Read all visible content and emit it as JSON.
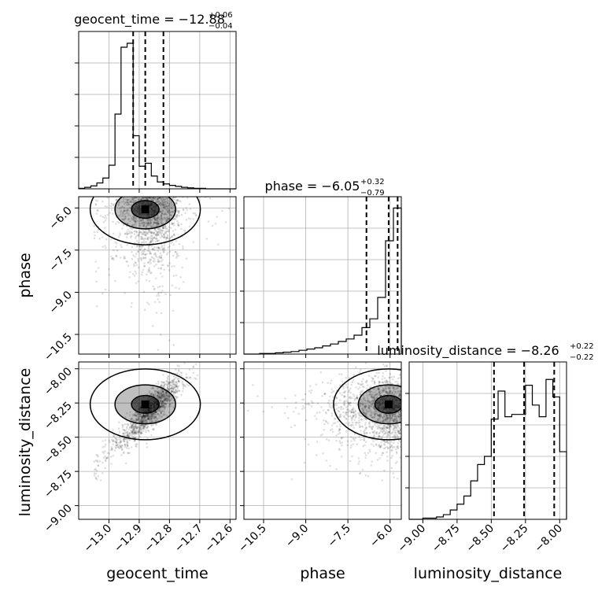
{
  "chart_data": {
    "type": "corner",
    "grid": true,
    "parameters": [
      {
        "name": "geocent_time",
        "axis_label": "geocent_time",
        "range": [
          -13.1,
          -12.58
        ],
        "ticks": [
          -13.0,
          -12.9,
          -12.8,
          -12.7,
          -12.6
        ],
        "tick_labels": [
          "−13.0",
          "−12.9",
          "−12.8",
          "−12.7",
          "−12.6"
        ],
        "median": -12.88,
        "quantiles": [
          -12.92,
          -12.88,
          -12.82
        ],
        "title": {
          "prefix": "geocent_time = −12.88",
          "upper": "+0.06",
          "lower": "−0.04"
        },
        "histogram": {
          "bin_edges": [
            -13.1,
            -13.08,
            -13.06,
            -13.04,
            -13.02,
            -13.0,
            -12.98,
            -12.96,
            -12.94,
            -12.92,
            -12.9,
            -12.88,
            -12.86,
            -12.84,
            -12.82,
            -12.8,
            -12.78,
            -12.76,
            -12.74,
            -12.72,
            -12.7,
            -12.68,
            -12.66,
            -12.64,
            -12.62,
            -12.6,
            -12.58
          ],
          "counts": [
            1,
            3,
            6,
            12,
            22,
            48,
            152,
            288,
            296,
            108,
            46,
            52,
            26,
            14,
            10,
            7,
            5,
            3,
            2,
            1,
            1,
            0,
            0,
            0,
            0,
            0
          ],
          "ylim": [
            0,
            320
          ]
        }
      },
      {
        "name": "phase",
        "axis_label": "phase",
        "range": [
          -11.2,
          -5.6
        ],
        "ticks": [
          -10.5,
          -9.0,
          -7.5,
          -6.0
        ],
        "tick_labels": [
          "−10.5",
          "−9.0",
          "−7.5",
          "−6.0"
        ],
        "median": -6.05,
        "quantiles": [
          -6.84,
          -6.05,
          -5.73
        ],
        "title": {
          "prefix": "phase = −6.05",
          "upper": "+0.32",
          "lower": "−0.79"
        },
        "histogram": {
          "bin_edges": [
            -11.2,
            -10.92,
            -10.64,
            -10.36,
            -10.08,
            -9.8,
            -9.52,
            -9.24,
            -8.96,
            -8.68,
            -8.4,
            -8.12,
            -7.84,
            -7.56,
            -7.28,
            -7.0,
            -6.72,
            -6.44,
            -6.16,
            -5.88,
            -5.6
          ],
          "counts": [
            0,
            0,
            1,
            1,
            2,
            3,
            4,
            6,
            8,
            10,
            13,
            16,
            20,
            24,
            30,
            42,
            56,
            90,
            180,
            232
          ],
          "ylim": [
            0,
            250
          ]
        }
      },
      {
        "name": "luminosity_distance",
        "axis_label": "luminosity_distance",
        "range": [
          -9.1,
          -7.95
        ],
        "ticks": [
          -9.0,
          -8.75,
          -8.5,
          -8.25,
          -8.0
        ],
        "tick_labels": [
          "−9.00",
          "−8.75",
          "−8.50",
          "−8.25",
          "−8.00"
        ],
        "median": -8.26,
        "quantiles": [
          -8.48,
          -8.26,
          -8.04
        ],
        "title": {
          "prefix": "luminosity_distance = −8.26",
          "upper": "+0.22",
          "lower": "−0.22"
        },
        "histogram": {
          "bin_edges": [
            -9.1,
            -9.05,
            -9.0,
            -8.95,
            -8.9,
            -8.85,
            -8.8,
            -8.75,
            -8.7,
            -8.65,
            -8.6,
            -8.55,
            -8.5,
            -8.45,
            -8.4,
            -8.35,
            -8.3,
            -8.25,
            -8.2,
            -8.15,
            -8.1,
            -8.05,
            -8.0,
            -7.95
          ],
          "counts": [
            0,
            0,
            1,
            1,
            2,
            4,
            8,
            13,
            20,
            33,
            47,
            54,
            86,
            110,
            88,
            90,
            90,
            115,
            98,
            88,
            120,
            105,
            58
          ],
          "ylim": [
            0,
            135
          ]
        }
      }
    ]
  }
}
